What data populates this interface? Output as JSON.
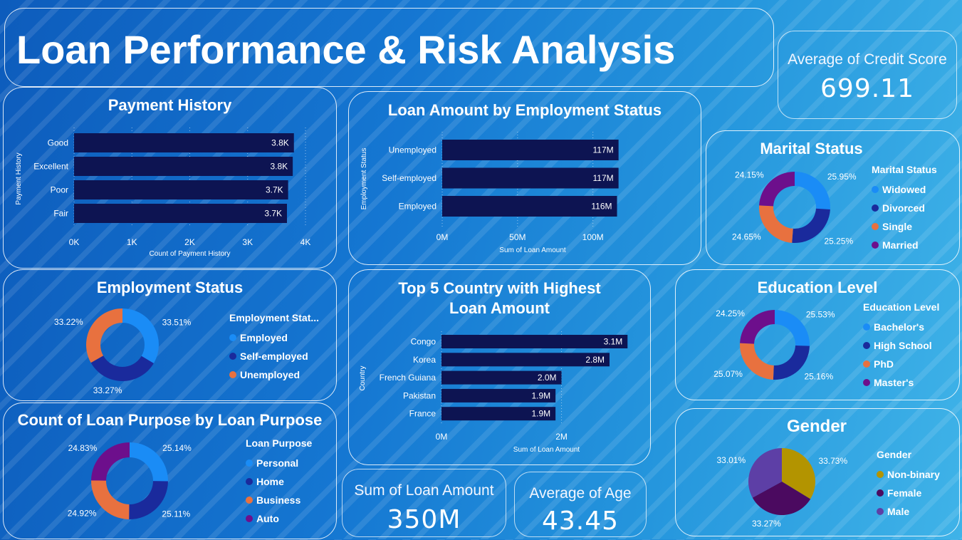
{
  "title": "Loan Performance & Risk Analysis",
  "kpis": {
    "credit_score": {
      "label": "Average of Credit Score",
      "value": "699.11"
    },
    "loan_amount": {
      "label": "Sum of Loan Amount",
      "value": "350M"
    },
    "age": {
      "label": "Average of Age",
      "value": "43.45"
    }
  },
  "colors": {
    "bar": "#0d1452",
    "blue": "#1a8cf6",
    "navy": "#1a2a9c",
    "orange": "#e8713f",
    "purple": "#6d0f8c",
    "olive": "#b39400",
    "darkpurple": "#4b0a60",
    "violet": "#5d3fa6"
  },
  "chart_data": [
    {
      "id": "payment",
      "type": "bar",
      "title": "Payment History",
      "xlabel": "Count of Payment History",
      "ylabel": "Payment History",
      "categories": [
        "Good",
        "Excellent",
        "Poor",
        "Fair"
      ],
      "values": [
        3800,
        3780,
        3700,
        3680
      ],
      "data_labels": [
        "3.8K",
        "3.8K",
        "3.7K",
        "3.7K"
      ],
      "xticks": [
        "0K",
        "1K",
        "2K",
        "3K",
        "4K"
      ],
      "xlim": [
        0,
        4000
      ],
      "grid": true
    },
    {
      "id": "employment_amount",
      "type": "bar",
      "title": "Loan Amount by Employment Status",
      "xlabel": "Sum of Loan Amount",
      "ylabel": "Employment Status",
      "categories": [
        "Unemployed",
        "Self-employed",
        "Employed"
      ],
      "values": [
        117,
        117,
        116
      ],
      "data_labels": [
        "117M",
        "117M",
        "116M"
      ],
      "xticks": [
        "0M",
        "50M",
        "100M"
      ],
      "xlim": [
        0,
        120
      ],
      "grid": true
    },
    {
      "id": "country",
      "type": "bar",
      "title": "Top 5 Country with Highest Loan Amount",
      "xlabel": "Sum of Loan Amount",
      "ylabel": "Country",
      "categories": [
        "Congo",
        "Korea",
        "French Guiana",
        "Pakistan",
        "France"
      ],
      "values": [
        3.1,
        2.8,
        2.0,
        1.9,
        1.9
      ],
      "data_labels": [
        "3.1M",
        "2.8M",
        "2.0M",
        "1.9M",
        "1.9M"
      ],
      "xticks": [
        "0M",
        "2M"
      ],
      "xlim": [
        0,
        3.5
      ],
      "grid": true
    },
    {
      "id": "marital",
      "type": "pie",
      "donut": true,
      "title": "Marital Status",
      "legend_title": "Marital Status",
      "labels": [
        "Widowed",
        "Divorced",
        "Single",
        "Married"
      ],
      "values": [
        25.95,
        25.25,
        24.65,
        24.15
      ],
      "pct_labels": [
        "25.95%",
        "25.25%",
        "24.65%",
        "24.15%"
      ],
      "colors": [
        "#1a8cf6",
        "#1a2a9c",
        "#e8713f",
        "#6d0f8c"
      ]
    },
    {
      "id": "employment",
      "type": "pie",
      "donut": true,
      "title": "Employment Status",
      "legend_title": "Employment Stat...",
      "labels": [
        "Employed",
        "Self-employed",
        "Unemployed"
      ],
      "values": [
        33.51,
        33.27,
        33.22
      ],
      "pct_labels": [
        "33.51%",
        "33.27%",
        "33.22%"
      ],
      "colors": [
        "#1a8cf6",
        "#1a2a9c",
        "#e8713f"
      ]
    },
    {
      "id": "purpose",
      "type": "pie",
      "donut": true,
      "title": "Count of Loan Purpose by Loan Purpose",
      "legend_title": "Loan Purpose",
      "labels": [
        "Personal",
        "Home",
        "Business",
        "Auto"
      ],
      "values": [
        25.14,
        25.11,
        24.92,
        24.83
      ],
      "pct_labels": [
        "25.14%",
        "25.11%",
        "24.92%",
        "24.83%"
      ],
      "colors": [
        "#1a8cf6",
        "#1a2a9c",
        "#e8713f",
        "#6d0f8c"
      ]
    },
    {
      "id": "education",
      "type": "pie",
      "donut": true,
      "title": "Education Level",
      "legend_title": "Education Level",
      "labels": [
        "Bachelor's",
        "High School",
        "PhD",
        "Master's"
      ],
      "values": [
        25.53,
        25.16,
        25.07,
        24.25
      ],
      "pct_labels": [
        "25.53%",
        "25.16%",
        "25.07%",
        "24.25%"
      ],
      "colors": [
        "#1a8cf6",
        "#1a2a9c",
        "#e8713f",
        "#6d0f8c"
      ]
    },
    {
      "id": "gender",
      "type": "pie",
      "donut": false,
      "title": "Gender",
      "legend_title": "Gender",
      "labels": [
        "Non-binary",
        "Female",
        "Male"
      ],
      "values": [
        33.73,
        33.27,
        33.01
      ],
      "pct_labels": [
        "33.73%",
        "33.27%",
        "33.01%"
      ],
      "colors": [
        "#b39400",
        "#4b0a60",
        "#5d3fa6"
      ]
    }
  ]
}
